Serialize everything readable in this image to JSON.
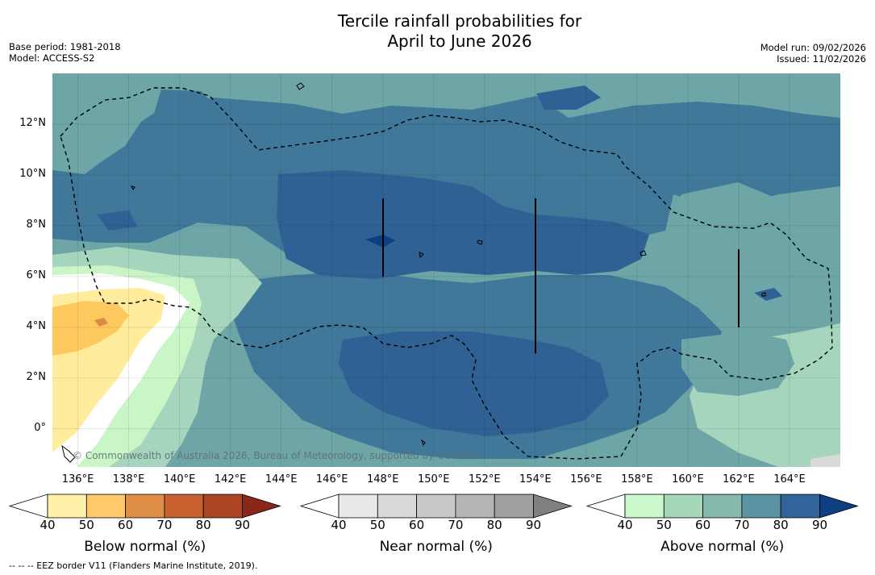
{
  "title": {
    "line1": "Tercile rainfall probabilities for",
    "line2": "April to June 2026"
  },
  "meta_left": {
    "base_period": "Base period: 1981-2018",
    "model": "Model: ACCESS-S2"
  },
  "meta_right": {
    "model_run": "Model run: 09/02/2026",
    "issued": "Issued: 11/02/2026"
  },
  "map": {
    "lat_labels": [
      "12°N",
      "10°N",
      "8°N",
      "6°N",
      "4°N",
      "2°N",
      "0°"
    ],
    "lat_values": [
      12,
      10,
      8,
      6,
      4,
      2,
      0
    ],
    "lon_labels": [
      "136°E",
      "138°E",
      "140°E",
      "142°E",
      "144°E",
      "146°E",
      "148°E",
      "150°E",
      "152°E",
      "154°E",
      "156°E",
      "158°E",
      "160°E",
      "162°E",
      "164°E"
    ],
    "lon_values": [
      136,
      138,
      140,
      142,
      144,
      146,
      148,
      150,
      152,
      154,
      156,
      158,
      160,
      162,
      164
    ],
    "lat_range": [
      -1.5,
      14
    ],
    "lon_range": [
      135,
      166
    ],
    "watermark": "© Commonwealth of Australia 2026, Bureau of Meteorology, supported by COSPPac",
    "colors": {
      "above_80_90": "#2f6194",
      "above_70_80": "#3f7899",
      "above_60_70": "#6ea5a7",
      "above_50_60": "#a5d5bc",
      "above_40_50": "#caf6c7",
      "below_40_50": "#ffec9c",
      "below_50_60": "#fdc95f",
      "below_60_70": "#dc8b44",
      "near": "#ffffff"
    }
  },
  "colorbars": [
    {
      "name": "below",
      "title": "Below normal (%)",
      "ticks": [
        "40",
        "50",
        "60",
        "70",
        "80",
        "90"
      ],
      "colors": [
        "#fff2a8",
        "#fdc96a",
        "#df8e46",
        "#c8612f",
        "#ad4424",
        "#88271a"
      ]
    },
    {
      "name": "near",
      "title": "Near normal (%)",
      "ticks": [
        "40",
        "50",
        "60",
        "70",
        "80",
        "90"
      ],
      "colors": [
        "#e8e8e8",
        "#d9d9d9",
        "#c9c9c9",
        "#b5b5b5",
        "#a0a0a0",
        "#808080"
      ]
    },
    {
      "name": "above",
      "title": "Above normal (%)",
      "ticks": [
        "40",
        "50",
        "60",
        "70",
        "80",
        "90"
      ],
      "colors": [
        "#ccf9cc",
        "#a4d8b9",
        "#86b9ad",
        "#5b93a2",
        "#32639a",
        "#0d3f82"
      ]
    }
  ],
  "footnote": "--  --  -- EEZ border V11 (Flanders Marine Institute, 2019)."
}
